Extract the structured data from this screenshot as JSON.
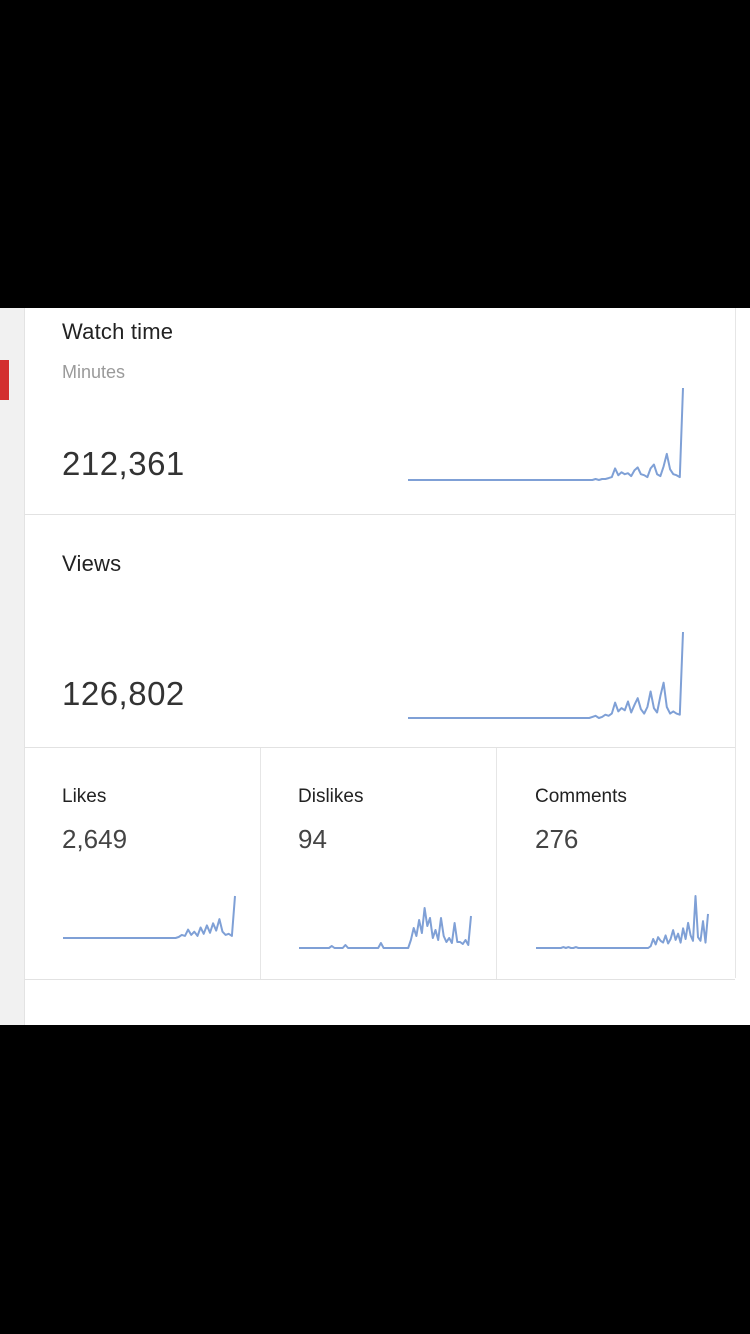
{
  "stats": {
    "watch_time": {
      "title": "Watch time",
      "subtitle": "Minutes",
      "value": "212,361"
    },
    "views": {
      "title": "Views",
      "value": "126,802"
    },
    "likes": {
      "title": "Likes",
      "value": "2,649"
    },
    "dislikes": {
      "title": "Dislikes",
      "value": "94"
    },
    "comments": {
      "title": "Comments",
      "value": "276"
    }
  },
  "next_section": {
    "title": ""
  },
  "colors": {
    "sparkline": "#7fa0d6",
    "rail_marker": "#d32f2f"
  },
  "chart_data": [
    {
      "type": "line",
      "name_ref": "watch_time",
      "values": [
        0,
        0,
        0,
        0,
        0,
        0,
        0,
        0,
        0,
        0,
        0,
        0,
        0,
        0,
        0,
        0,
        0,
        0,
        0,
        0,
        0,
        0,
        0,
        0,
        0,
        0,
        0,
        0,
        0,
        0,
        0,
        0,
        0,
        0,
        0,
        0,
        0,
        0,
        0,
        0,
        0,
        0,
        0,
        0,
        0,
        0,
        0,
        0,
        0,
        0,
        0,
        0,
        0,
        0,
        0,
        0,
        0,
        0,
        1,
        0,
        1,
        1,
        2,
        3,
        12,
        5,
        8,
        6,
        7,
        4,
        10,
        13,
        6,
        5,
        3,
        12,
        16,
        6,
        4,
        14,
        27,
        11,
        6,
        5,
        3,
        95
      ]
    },
    {
      "type": "line",
      "name_ref": "views",
      "values": [
        0,
        0,
        0,
        0,
        0,
        0,
        0,
        0,
        0,
        0,
        0,
        0,
        0,
        0,
        0,
        0,
        0,
        0,
        0,
        0,
        0,
        0,
        0,
        0,
        0,
        0,
        0,
        0,
        0,
        0,
        0,
        0,
        0,
        0,
        0,
        0,
        0,
        0,
        0,
        0,
        0,
        0,
        0,
        0,
        0,
        0,
        0,
        0,
        0,
        0,
        0,
        0,
        0,
        0,
        0,
        0,
        0,
        1,
        2,
        0,
        1,
        3,
        2,
        4,
        14,
        6,
        9,
        7,
        15,
        5,
        12,
        18,
        8,
        4,
        10,
        24,
        9,
        5,
        20,
        32,
        10,
        4,
        6,
        4,
        3,
        78
      ]
    },
    {
      "type": "line",
      "name_ref": "likes",
      "values": [
        0,
        0,
        0,
        0,
        0,
        0,
        0,
        0,
        0,
        0,
        0,
        0,
        0,
        0,
        0,
        0,
        0,
        0,
        0,
        0,
        0,
        0,
        0,
        0,
        0,
        0,
        0,
        0,
        0,
        0,
        0,
        0,
        0,
        0,
        0,
        0,
        0,
        1,
        3,
        2,
        8,
        3,
        6,
        2,
        10,
        4,
        12,
        5,
        14,
        7,
        18,
        6,
        3,
        4,
        2,
        40
      ]
    },
    {
      "type": "line",
      "name_ref": "dislikes",
      "values": [
        0,
        0,
        0,
        0,
        0,
        0,
        0,
        0,
        0,
        0,
        0,
        0,
        2,
        0,
        0,
        0,
        0,
        3,
        0,
        0,
        0,
        0,
        0,
        0,
        0,
        0,
        0,
        0,
        0,
        0,
        5,
        0,
        0,
        0,
        0,
        0,
        0,
        0,
        0,
        0,
        0,
        8,
        20,
        12,
        28,
        15,
        40,
        22,
        30,
        10,
        18,
        8,
        30,
        12,
        6,
        10,
        5,
        25,
        6,
        6,
        4,
        8,
        3,
        32
      ]
    },
    {
      "type": "line",
      "name_ref": "comments",
      "values": [
        0,
        0,
        0,
        0,
        0,
        0,
        0,
        0,
        0,
        0,
        0,
        1,
        0,
        1,
        0,
        0,
        1,
        0,
        0,
        0,
        0,
        0,
        0,
        0,
        0,
        0,
        0,
        0,
        0,
        0,
        0,
        0,
        0,
        0,
        0,
        0,
        0,
        0,
        0,
        0,
        0,
        0,
        0,
        0,
        0,
        0,
        2,
        10,
        4,
        12,
        8,
        6,
        14,
        5,
        10,
        20,
        9,
        16,
        6,
        22,
        10,
        28,
        14,
        8,
        58,
        12,
        8,
        30,
        6,
        38
      ]
    }
  ]
}
